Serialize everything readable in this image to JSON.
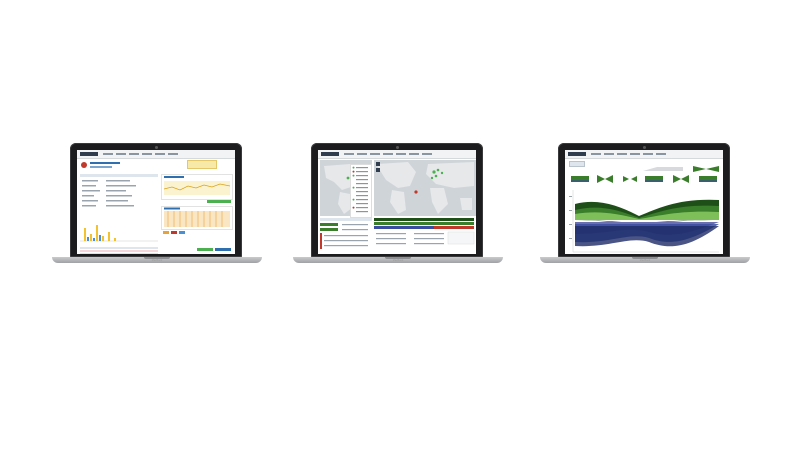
{
  "laptops": [
    {
      "name": "laptop-left",
      "screen": "host-details-dashboard",
      "brand_label": "MacBook"
    },
    {
      "name": "laptop-center",
      "screen": "traffic-map-dashboard",
      "brand_label": "MacBook"
    },
    {
      "name": "laptop-right",
      "screen": "flow-chart-dashboard",
      "brand_label": "MacBook"
    }
  ],
  "colors": {
    "bezel": "#1c1c1e",
    "green": "#3a7d2a",
    "dark_green": "#1f4f18",
    "blue": "#3b4da0",
    "purple": "#6a6fb0",
    "orange": "#e8a23c",
    "red": "#c0392b"
  }
}
